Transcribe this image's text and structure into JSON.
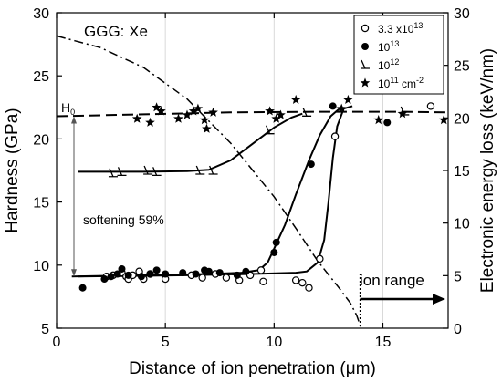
{
  "chart_data": {
    "type": "scatter",
    "annotation_sample": "GGG: Xe",
    "xlabel": "Distance of ion penetration (μm)",
    "ylabel_left": "Hardness (GPa)",
    "ylabel_right": "Electronic energy loss (keV/nm)",
    "xlim": [
      0,
      18
    ],
    "ylim_left": [
      5,
      30
    ],
    "ylim_right": [
      0,
      30
    ],
    "x_ticks": [
      0,
      5,
      10,
      15
    ],
    "y_ticks_left": [
      5,
      10,
      15,
      20,
      25,
      30
    ],
    "y_ticks_right": [
      0,
      5,
      10,
      15,
      20,
      25,
      30
    ],
    "grid": "vertical-light",
    "legend_position": "top-right",
    "legend": [
      {
        "label": "3.3 x10",
        "sup": "13",
        "suffix": "",
        "marker": "open-circle"
      },
      {
        "label": "10",
        "sup": "13",
        "suffix": "",
        "marker": "filled-circle"
      },
      {
        "label": "10",
        "sup": "12",
        "suffix": "",
        "marker": "half-triangle"
      },
      {
        "label": "10",
        "sup": "11",
        "suffix": " cm",
        "sup2": "-2",
        "marker": "star"
      }
    ],
    "annotations": {
      "h0": "H",
      "h0_sub": "0",
      "softening": "softening 59%",
      "ion_range": "ion range"
    },
    "series": [
      {
        "name": "3.3 x10^13",
        "marker": "open-circle",
        "points": [
          [
            2.3,
            9.1
          ],
          [
            2.6,
            9.2
          ],
          [
            3.0,
            9.4
          ],
          [
            3.2,
            9.1
          ],
          [
            3.3,
            8.9
          ],
          [
            3.5,
            9.2
          ],
          [
            3.8,
            9.5
          ],
          [
            4.0,
            8.9
          ],
          [
            4.3,
            9.3
          ],
          [
            5.0,
            8.9
          ],
          [
            6.2,
            9.2
          ],
          [
            6.7,
            9.0
          ],
          [
            7.3,
            9.3
          ],
          [
            7.8,
            9.0
          ],
          [
            8.4,
            8.8
          ],
          [
            8.9,
            9.2
          ],
          [
            9.4,
            9.6
          ],
          [
            9.5,
            8.7
          ],
          [
            11.0,
            8.8
          ],
          [
            11.3,
            8.6
          ],
          [
            11.6,
            8.2
          ],
          [
            12.1,
            10.5
          ],
          [
            12.8,
            20.2
          ],
          [
            17.2,
            22.6
          ]
        ]
      },
      {
        "name": "10^13",
        "marker": "filled-circle",
        "points": [
          [
            1.2,
            8.2
          ],
          [
            2.2,
            8.9
          ],
          [
            2.5,
            9.1
          ],
          [
            2.8,
            9.3
          ],
          [
            3.0,
            9.7
          ],
          [
            3.3,
            9.2
          ],
          [
            3.9,
            9.1
          ],
          [
            4.3,
            9.3
          ],
          [
            4.6,
            9.6
          ],
          [
            5.0,
            9.3
          ],
          [
            5.8,
            9.4
          ],
          [
            6.4,
            9.3
          ],
          [
            6.8,
            9.6
          ],
          [
            7.0,
            9.5
          ],
          [
            7.5,
            9.4
          ],
          [
            8.3,
            9.2
          ],
          [
            8.7,
            9.5
          ],
          [
            10.0,
            11.0
          ],
          [
            10.1,
            11.8
          ],
          [
            11.7,
            18.0
          ],
          [
            12.7,
            22.6
          ],
          [
            15.2,
            21.3
          ]
        ]
      },
      {
        "name": "10^12",
        "marker": "half-triangle",
        "points": [
          [
            2.6,
            17.3
          ],
          [
            3.0,
            17.4
          ],
          [
            4.2,
            17.5
          ],
          [
            4.6,
            17.4
          ],
          [
            6.6,
            17.5
          ],
          [
            7.2,
            17.5
          ],
          [
            9.8,
            20.7
          ],
          [
            11.5,
            22.1
          ],
          [
            16.0,
            22.2
          ]
        ]
      },
      {
        "name": "10^11 cm^-2",
        "marker": "star",
        "points": [
          [
            3.7,
            21.6
          ],
          [
            4.3,
            21.3
          ],
          [
            4.6,
            22.5
          ],
          [
            4.8,
            22.2
          ],
          [
            5.6,
            21.6
          ],
          [
            6.0,
            21.9
          ],
          [
            6.3,
            22.2
          ],
          [
            6.5,
            22.4
          ],
          [
            6.8,
            21.5
          ],
          [
            6.9,
            20.8
          ],
          [
            7.2,
            22.1
          ],
          [
            9.8,
            22.2
          ],
          [
            10.1,
            21.6
          ],
          [
            10.3,
            21.9
          ],
          [
            11.0,
            23.1
          ],
          [
            13.1,
            22.4
          ],
          [
            13.4,
            23.1
          ],
          [
            14.8,
            21.5
          ],
          [
            15.9,
            22.0
          ],
          [
            17.8,
            21.5
          ]
        ]
      }
    ],
    "fit_curves": [
      {
        "style": "dash",
        "points": [
          [
            0,
            21.8
          ],
          [
            4,
            21.95
          ],
          [
            8,
            22.1
          ],
          [
            12,
            22.15
          ],
          [
            16,
            22.15
          ],
          [
            18,
            22.1
          ]
        ]
      },
      {
        "style": "dash-dot",
        "axis": "right",
        "points": [
          [
            0,
            27.8
          ],
          [
            2,
            26.7
          ],
          [
            4,
            24.8
          ],
          [
            6,
            21.8
          ],
          [
            8,
            17.6
          ],
          [
            10,
            12.5
          ],
          [
            11,
            9.5
          ],
          [
            12,
            6.4
          ],
          [
            13,
            3.8
          ],
          [
            13.5,
            2.4
          ],
          [
            13.8,
            1.2
          ],
          [
            14.0,
            0.0
          ]
        ]
      },
      {
        "style": "solid",
        "points": [
          [
            1,
            17.4
          ],
          [
            4,
            17.4
          ],
          [
            6,
            17.45
          ],
          [
            7,
            17.55
          ],
          [
            8,
            18.3
          ],
          [
            9,
            19.6
          ],
          [
            10,
            20.9
          ],
          [
            10.8,
            21.7
          ],
          [
            11.3,
            22.0
          ]
        ]
      },
      {
        "style": "solid",
        "points": [
          [
            0.7,
            9.1
          ],
          [
            4,
            9.2
          ],
          [
            7,
            9.3
          ],
          [
            8.5,
            9.4
          ],
          [
            9.3,
            9.6
          ],
          [
            9.7,
            10.2
          ],
          [
            10.0,
            11.3
          ],
          [
            10.5,
            13.2
          ],
          [
            11.0,
            15.6
          ],
          [
            11.6,
            18.3
          ],
          [
            12.1,
            20.3
          ],
          [
            12.6,
            21.8
          ],
          [
            13.0,
            22.4
          ]
        ]
      },
      {
        "style": "solid",
        "points": [
          [
            1,
            9.1
          ],
          [
            6,
            9.2
          ],
          [
            9,
            9.3
          ],
          [
            11,
            9.4
          ],
          [
            11.5,
            9.5
          ],
          [
            12.0,
            10.2
          ],
          [
            12.3,
            12.0
          ],
          [
            12.5,
            15.0
          ],
          [
            12.7,
            18.5
          ],
          [
            12.9,
            21.0
          ],
          [
            13.2,
            22.4
          ],
          [
            13.6,
            22.6
          ]
        ]
      }
    ]
  }
}
